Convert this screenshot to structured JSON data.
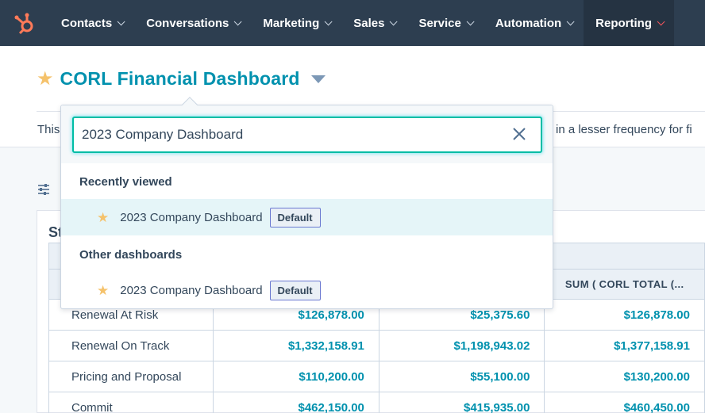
{
  "nav": {
    "items": [
      {
        "label": "Contacts",
        "active": false
      },
      {
        "label": "Conversations",
        "active": false
      },
      {
        "label": "Marketing",
        "active": false
      },
      {
        "label": "Sales",
        "active": false
      },
      {
        "label": "Service",
        "active": false
      },
      {
        "label": "Automation",
        "active": false
      },
      {
        "label": "Reporting",
        "active": true
      }
    ],
    "logo_icon": "hubspot-sprocket-icon",
    "logo_color": "#ff7a59"
  },
  "header": {
    "title": "CORL Financial Dashboard",
    "description_left": "This",
    "description_right": "in a lesser frequency for fi"
  },
  "dropdown": {
    "search_value": "2023 Company Dashboard",
    "recent_heading": "Recently viewed",
    "recent_items": [
      {
        "name": "2023 Company Dashboard",
        "badge": "Default"
      }
    ],
    "other_heading": "Other dashboards",
    "other_items": [
      {
        "name": "2023 Company Dashboard",
        "badge": "Default"
      }
    ]
  },
  "report": {
    "title_partial": "St",
    "column_header_last": "SUM ( CORL TOTAL (...",
    "rows": [
      {
        "label": "Renewal At Risk",
        "v1": "$126,878.00",
        "v2": "$25,375.60",
        "v3": "$126,878.00"
      },
      {
        "label": "Renewal On Track",
        "v1": "$1,332,158.91",
        "v2": "$1,198,943.02",
        "v3": "$1,377,158.91"
      },
      {
        "label": "Pricing and Proposal",
        "v1": "$110,200.00",
        "v2": "$55,100.00",
        "v3": "$130,200.00"
      },
      {
        "label": "Commit",
        "v1": "$462,150.00",
        "v2": "$415,935.00",
        "v3": "$460,450.00"
      }
    ]
  },
  "colors": {
    "accent": "#0091ae",
    "nav_bg": "#2d3e50",
    "star": "#f5c26b",
    "focus": "#00bda5"
  }
}
